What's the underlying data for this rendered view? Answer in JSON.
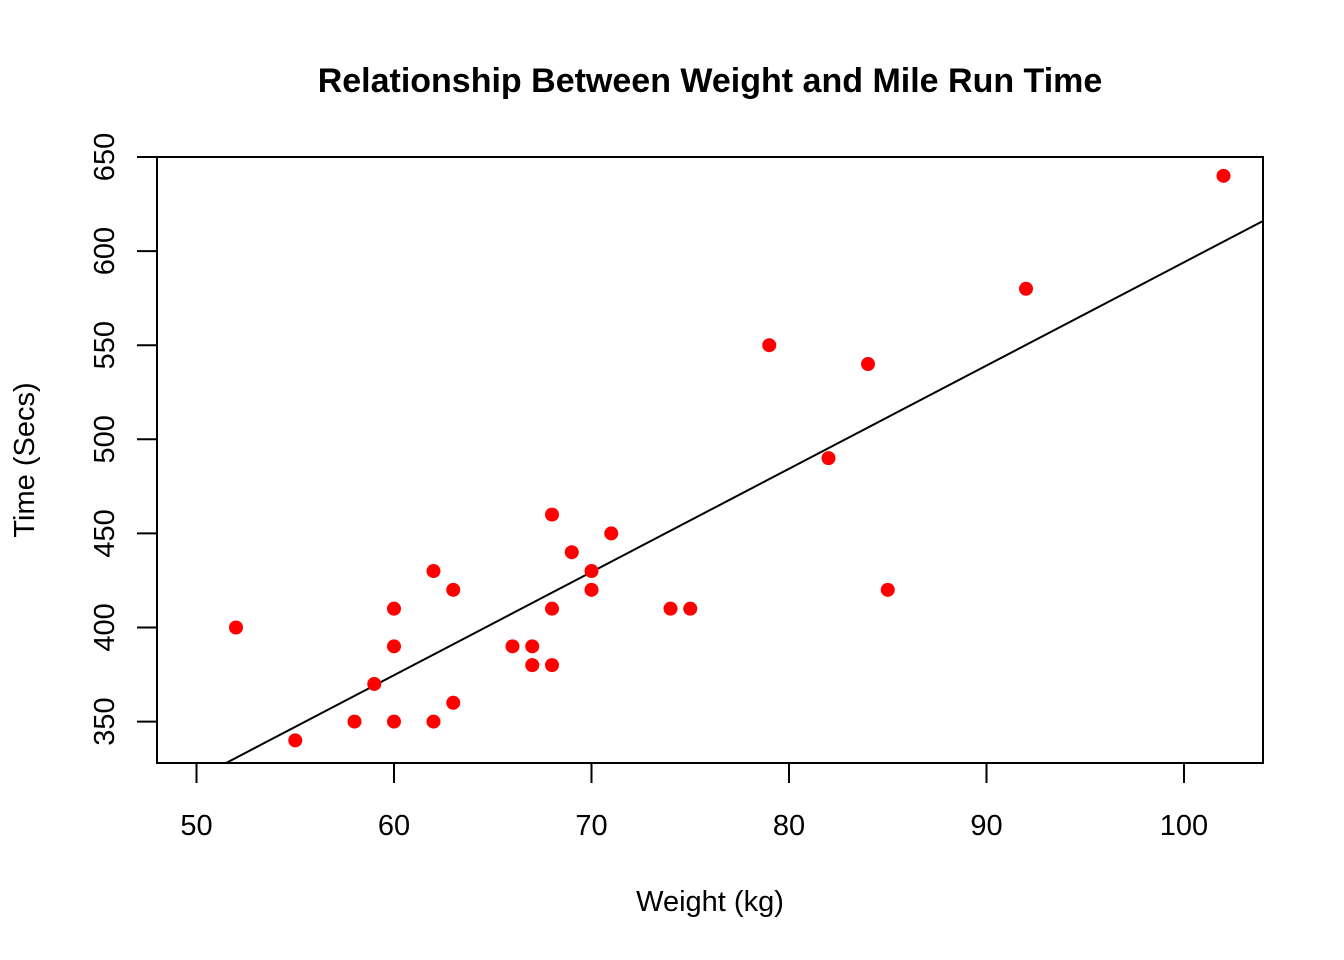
{
  "chart_data": {
    "type": "scatter",
    "title": "Relationship Between Weight and Mile Run Time",
    "xlabel": "Weight (kg)",
    "ylabel": "Time (Secs)",
    "xlim": [
      48,
      104
    ],
    "ylim": [
      328,
      650
    ],
    "x_ticks": [
      50,
      60,
      70,
      80,
      90,
      100
    ],
    "y_ticks": [
      350,
      400,
      450,
      500,
      550,
      600,
      650
    ],
    "x_tick_labels": [
      "50",
      "60",
      "70",
      "80",
      "90",
      "100"
    ],
    "y_tick_labels": [
      "350",
      "400",
      "450",
      "500",
      "550",
      "600",
      "650"
    ],
    "points": [
      {
        "x": 52,
        "y": 400
      },
      {
        "x": 55,
        "y": 340
      },
      {
        "x": 58,
        "y": 350
      },
      {
        "x": 59,
        "y": 370
      },
      {
        "x": 60,
        "y": 410
      },
      {
        "x": 60,
        "y": 390
      },
      {
        "x": 60,
        "y": 350
      },
      {
        "x": 62,
        "y": 430
      },
      {
        "x": 62,
        "y": 350
      },
      {
        "x": 63,
        "y": 420
      },
      {
        "x": 63,
        "y": 360
      },
      {
        "x": 66,
        "y": 390
      },
      {
        "x": 67,
        "y": 390
      },
      {
        "x": 67,
        "y": 380
      },
      {
        "x": 68,
        "y": 460
      },
      {
        "x": 68,
        "y": 410
      },
      {
        "x": 68,
        "y": 380
      },
      {
        "x": 69,
        "y": 440
      },
      {
        "x": 70,
        "y": 430
      },
      {
        "x": 70,
        "y": 420
      },
      {
        "x": 71,
        "y": 450
      },
      {
        "x": 74,
        "y": 410
      },
      {
        "x": 75,
        "y": 410
      },
      {
        "x": 79,
        "y": 550
      },
      {
        "x": 82,
        "y": 490
      },
      {
        "x": 84,
        "y": 540
      },
      {
        "x": 85,
        "y": 420
      },
      {
        "x": 92,
        "y": 580
      },
      {
        "x": 102,
        "y": 640
      }
    ],
    "trend_line": {
      "x1": 51.5,
      "y1": 328,
      "x2": 104,
      "y2": 616
    },
    "grid": false,
    "colors": {
      "points": "#ff0000",
      "line": "#000000",
      "axes": "#000000"
    }
  }
}
